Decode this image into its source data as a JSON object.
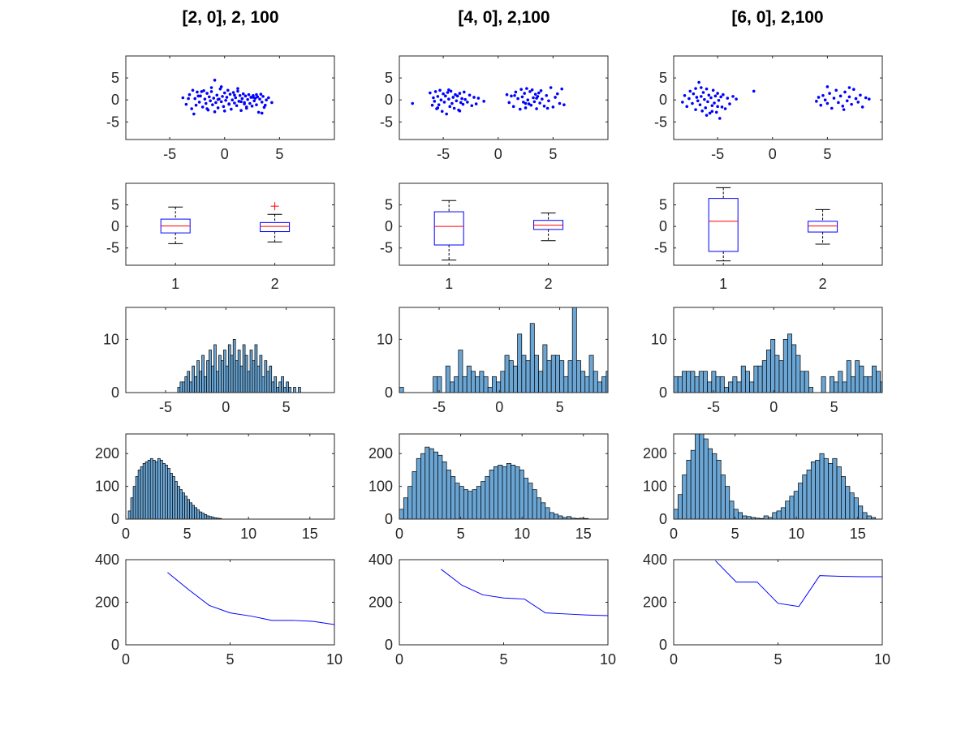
{
  "figure": {
    "titles": [
      "[2, 0], 2, 100",
      "[4, 0], 2,100",
      "[6, 0], 2,100"
    ]
  },
  "colors": {
    "points": "#0000ff",
    "box": "#0000ff",
    "median": "#ff0000",
    "whisker": "#000000",
    "outlier": "#ff0000",
    "hist_fill": "#6aa5d4",
    "hist_edge": "#000000",
    "line": "#0000ff",
    "axes": "#262626"
  },
  "chart_data": [
    {
      "type": "scatter",
      "column": 0,
      "xlim": [
        -9,
        10
      ],
      "ylim": [
        -9,
        10
      ],
      "xticks": [
        "-5",
        "0",
        "5"
      ],
      "yticks": [
        "-5",
        "0",
        "5"
      ],
      "x": [
        -3.8,
        -3.5,
        -3.2,
        -3.0,
        -2.9,
        -2.7,
        -2.6,
        -2.5,
        -2.3,
        -2.2,
        -2.0,
        -1.9,
        -1.8,
        -1.7,
        -1.6,
        -1.5,
        -1.4,
        -1.3,
        -1.2,
        -1.1,
        -1.0,
        -0.9,
        -0.8,
        -0.7,
        -0.6,
        -0.5,
        -0.4,
        -0.3,
        -0.2,
        -0.1,
        0.0,
        0.1,
        0.2,
        0.3,
        0.4,
        0.5,
        0.6,
        0.7,
        0.8,
        0.9,
        1.0,
        1.1,
        1.2,
        1.3,
        1.4,
        1.5,
        1.6,
        1.7,
        1.8,
        1.9,
        2.0,
        2.1,
        2.2,
        2.3,
        2.4,
        2.5,
        2.6,
        2.7,
        2.8,
        2.9,
        3.0,
        3.1,
        3.2,
        3.3,
        3.4,
        3.5,
        3.6,
        3.8,
        4.0,
        4.3,
        -2.8,
        -2.4,
        -1.6,
        -0.6,
        0.4,
        1.2,
        2.0,
        2.9,
        3.4,
        -3.3,
        -1.2,
        0.0,
        0.9,
        1.8,
        2.6,
        -0.9,
        -2.1,
        1.5,
        3.7,
        -0.3
      ],
      "y": [
        0.5,
        -1.0,
        1.2,
        -2.0,
        2.2,
        0.3,
        -1.2,
        1.8,
        -0.5,
        0.9,
        -1.6,
        2.1,
        0.2,
        -0.8,
        1.5,
        -2.3,
        0.7,
        -0.2,
        1.9,
        -1.1,
        0.4,
        4.5,
        -0.6,
        1.1,
        -1.8,
        0.2,
        2.5,
        -0.4,
        0.8,
        -1.5,
        1.6,
        -0.1,
        0.6,
        2.2,
        -0.9,
        1.3,
        -2.1,
        0.0,
        1.7,
        -0.7,
        0.5,
        -1.3,
        2.0,
        -0.3,
        1.0,
        -2.4,
        0.3,
        1.4,
        -0.6,
        0.9,
        -1.9,
        0.1,
        1.2,
        -0.8,
        0.6,
        -1.4,
        1.0,
        -0.2,
        0.4,
        -1.1,
        0.7,
        -2.8,
        0.2,
        1.3,
        -0.5,
        0.8,
        -1.7,
        0.0,
        0.5,
        -0.6,
        -3.2,
        0.9,
        -2.0,
        0.1,
        -1.0,
        2.6,
        -1.6,
        1.2,
        -3.0,
        0.3,
        2.8,
        -2.5,
        1.1,
        -0.9,
        0.6,
        -2.7,
        1.9,
        -0.4,
        -1.2,
        3.0
      ]
    },
    {
      "type": "scatter",
      "column": 1,
      "xlim": [
        -9,
        10
      ],
      "ylim": [
        -9,
        10
      ],
      "xticks": [
        "-5",
        "0",
        "5"
      ],
      "yticks": [
        "-5",
        "0",
        "5"
      ],
      "x": [
        -7.8,
        -6.2,
        -6.0,
        -5.9,
        -5.8,
        -5.7,
        -5.6,
        -5.5,
        -5.4,
        -5.3,
        -5.2,
        -5.1,
        -5.0,
        -4.9,
        -4.8,
        -4.7,
        -4.6,
        -4.5,
        -4.4,
        -4.3,
        -4.2,
        -4.1,
        -4.0,
        -3.9,
        -3.8,
        -3.7,
        -3.6,
        -3.5,
        -3.4,
        -3.3,
        -3.2,
        -3.1,
        -3.0,
        -2.8,
        -2.6,
        -2.4,
        -2.2,
        -2.0,
        -1.8,
        -1.3,
        0.8,
        1.0,
        1.2,
        1.4,
        1.6,
        1.8,
        2.0,
        2.1,
        2.2,
        2.3,
        2.4,
        2.5,
        2.6,
        2.7,
        2.8,
        2.9,
        3.0,
        3.1,
        3.2,
        3.3,
        3.4,
        3.5,
        3.6,
        3.7,
        3.8,
        3.9,
        4.0,
        4.2,
        4.4,
        4.6,
        4.8,
        5.0,
        5.2,
        5.4,
        5.6,
        5.8,
        6.0,
        -5.5,
        -4.5,
        -3.5,
        2.5,
        3.5,
        4.5,
        1.5
      ],
      "y": [
        -0.8,
        1.6,
        -1.2,
        0.5,
        -0.3,
        1.9,
        -2.0,
        0.8,
        -1.1,
        2.2,
        0.0,
        -2.6,
        1.4,
        -0.5,
        0.9,
        -3.2,
        1.7,
        0.2,
        -1.5,
        2.0,
        -0.8,
        0.6,
        -1.9,
        1.2,
        -0.2,
        0.9,
        -2.3,
        1.5,
        -0.6,
        0.3,
        -1.0,
        1.8,
        0.1,
        -0.5,
        1.1,
        -1.3,
        0.6,
        -0.9,
        0.4,
        -0.3,
        1.2,
        -0.6,
        0.9,
        -1.5,
        1.8,
        0.3,
        -2.1,
        2.4,
        0.7,
        -0.5,
        1.5,
        -1.8,
        2.6,
        0.0,
        -0.9,
        1.9,
        -1.2,
        2.3,
        0.5,
        -0.4,
        1.3,
        -2.0,
        0.8,
        1.6,
        -0.7,
        2.1,
        0.2,
        -1.4,
        1.0,
        -0.2,
        2.8,
        -1.6,
        0.6,
        1.4,
        -0.8,
        2.5,
        -1.1,
        -1.8,
        2.3,
        -2.5,
        -0.8,
        0.4,
        -1.9,
        1.0
      ]
    },
    {
      "type": "scatter",
      "column": 2,
      "xlim": [
        -9,
        10
      ],
      "ylim": [
        -9,
        10
      ],
      "xticks": [
        "-5",
        "0",
        "5"
      ],
      "yticks": [
        "-5",
        "0",
        "5"
      ],
      "x": [
        -8.2,
        -8.0,
        -7.8,
        -7.6,
        -7.5,
        -7.3,
        -7.2,
        -7.0,
        -6.9,
        -6.8,
        -6.7,
        -6.6,
        -6.5,
        -6.4,
        -6.3,
        -6.2,
        -6.1,
        -6.0,
        -5.9,
        -5.8,
        -5.7,
        -5.6,
        -5.5,
        -5.4,
        -5.3,
        -5.2,
        -5.1,
        -5.0,
        -4.9,
        -4.8,
        -4.7,
        -4.6,
        -4.5,
        -4.3,
        -4.1,
        -3.9,
        -3.6,
        -3.3,
        -1.7,
        4.0,
        4.2,
        4.4,
        4.6,
        4.8,
        5.0,
        5.2,
        5.4,
        5.6,
        5.8,
        6.0,
        6.2,
        6.4,
        6.6,
        6.8,
        7.0,
        7.2,
        7.4,
        7.6,
        7.8,
        8.0,
        8.2,
        8.5,
        8.8,
        5.0,
        6.5,
        7.0,
        -7.0,
        -6.0,
        -5.0,
        -6.5,
        -5.5
      ],
      "y": [
        -0.5,
        1.0,
        -1.5,
        0.3,
        2.0,
        -0.8,
        1.4,
        -2.2,
        0.6,
        -0.2,
        4.0,
        -1.1,
        0.8,
        -2.5,
        1.7,
        0.1,
        -1.8,
        2.5,
        -0.4,
        1.1,
        -3.0,
        0.5,
        -1.3,
        2.2,
        -0.7,
        0.9,
        -2.8,
        1.5,
        -0.1,
        -4.2,
        0.7,
        -1.6,
        1.2,
        -2.0,
        0.4,
        -0.9,
        0.8,
        0.2,
        2.0,
        -0.3,
        0.6,
        -1.2,
        1.0,
        0.0,
        -0.8,
        1.5,
        -1.9,
        0.4,
        2.2,
        -0.6,
        0.9,
        -1.4,
        1.8,
        -0.2,
        0.7,
        -1.0,
        2.4,
        0.3,
        -0.5,
        1.1,
        -1.6,
        0.5,
        0.2,
        3.0,
        -2.2,
        2.8,
        2.6,
        -3.5,
        -1.5,
        2.8,
        -2.6
      ]
    },
    {
      "type": "box",
      "column": 0,
      "categories": [
        "1",
        "2"
      ],
      "ylim": [
        -9,
        10
      ],
      "yticks": [
        "-5",
        "0",
        "5"
      ],
      "boxes": [
        {
          "whisker_low": -4.0,
          "q1": -1.5,
          "median": 0.1,
          "q3": 1.7,
          "whisker_high": 4.5,
          "outliers": []
        },
        {
          "whisker_low": -3.6,
          "q1": -1.2,
          "median": 0.0,
          "q3": 0.9,
          "whisker_high": 2.8,
          "outliers": [
            4.7
          ]
        }
      ]
    },
    {
      "type": "box",
      "column": 1,
      "categories": [
        "1",
        "2"
      ],
      "ylim": [
        -9,
        10
      ],
      "yticks": [
        "-5",
        "0",
        "5"
      ],
      "boxes": [
        {
          "whisker_low": -7.8,
          "q1": -4.3,
          "median": 0.0,
          "q3": 3.4,
          "whisker_high": 6.0,
          "outliers": []
        },
        {
          "whisker_low": -3.3,
          "q1": -0.7,
          "median": 0.3,
          "q3": 1.4,
          "whisker_high": 3.1,
          "outliers": []
        }
      ]
    },
    {
      "type": "box",
      "column": 2,
      "categories": [
        "1",
        "2"
      ],
      "ylim": [
        -9,
        10
      ],
      "yticks": [
        "-5",
        "0",
        "5"
      ],
      "boxes": [
        {
          "whisker_low": -8.0,
          "q1": -5.8,
          "median": 1.2,
          "q3": 6.5,
          "whisker_high": 9.0,
          "outliers": []
        },
        {
          "whisker_low": -4.1,
          "q1": -1.3,
          "median": 0.1,
          "q3": 1.2,
          "whisker_high": 3.9,
          "outliers": []
        }
      ]
    },
    {
      "type": "bar",
      "column": 0,
      "xlim": [
        -8.3,
        9.0
      ],
      "ylim": [
        0,
        16
      ],
      "xticks": [
        "-5",
        "0",
        "5"
      ],
      "yticks": [
        "0",
        "10"
      ],
      "bin_edges_start": -4.0,
      "bin_width": 0.2,
      "values": [
        1,
        2,
        2,
        3,
        4,
        2,
        5,
        3,
        6,
        4,
        7,
        3,
        6,
        8,
        5,
        9,
        4,
        7,
        6,
        8,
        5,
        9,
        7,
        10,
        6,
        8,
        5,
        9,
        7,
        4,
        8,
        6,
        9,
        5,
        7,
        3,
        6,
        4,
        5,
        2,
        3,
        1,
        2,
        3,
        1,
        2,
        1,
        0,
        1,
        0,
        1
      ]
    },
    {
      "type": "bar",
      "column": 1,
      "xlim": [
        -8.3,
        9.0
      ],
      "ylim": [
        0,
        16
      ],
      "xticks": [
        "-5",
        "0",
        "5"
      ],
      "yticks": [
        "0",
        "10"
      ],
      "bin_edges_start": -8.3,
      "bin_width": 0.35,
      "values": [
        1,
        0,
        0,
        0,
        0,
        0,
        0,
        0,
        3,
        3,
        0,
        5,
        2,
        3,
        8,
        3,
        5,
        4,
        3,
        4,
        3,
        1,
        3,
        2,
        4,
        7,
        6,
        5,
        11,
        7,
        6,
        13,
        7,
        4,
        9,
        6,
        7,
        7,
        6,
        3,
        6,
        16,
        6,
        4,
        3,
        7,
        4,
        2,
        3,
        4,
        3,
        4,
        3,
        1
      ]
    },
    {
      "type": "bar",
      "column": 2,
      "xlim": [
        -8.3,
        9.0
      ],
      "ylim": [
        0,
        16
      ],
      "xticks": [
        "-5",
        "0",
        "5"
      ],
      "yticks": [
        "0",
        "10"
      ],
      "bin_edges_start": -8.3,
      "bin_width": 0.35,
      "values": [
        3,
        3,
        4,
        4,
        4,
        3,
        4,
        4,
        2,
        4,
        3,
        3,
        1,
        2,
        3,
        2,
        5,
        4,
        2,
        5,
        5,
        6,
        8,
        10,
        7,
        6,
        10,
        11,
        9,
        7,
        4,
        4,
        1,
        0,
        0,
        3,
        0,
        3,
        2,
        4,
        2,
        6,
        3,
        6,
        5,
        3,
        3,
        5,
        4,
        2,
        1,
        1,
        1,
        1
      ]
    },
    {
      "type": "bar",
      "column": 0,
      "xlim": [
        0,
        17
      ],
      "ylim": [
        0,
        260
      ],
      "xticks": [
        "0",
        "5",
        "10",
        "15"
      ],
      "yticks": [
        "0",
        "100",
        "200"
      ],
      "bin_edges_start": 0.2,
      "bin_width": 0.2,
      "values": [
        25,
        65,
        100,
        130,
        150,
        160,
        170,
        175,
        180,
        185,
        180,
        175,
        185,
        180,
        170,
        165,
        155,
        140,
        130,
        115,
        100,
        90,
        80,
        70,
        60,
        50,
        42,
        35,
        28,
        22,
        18,
        14,
        10,
        8,
        6,
        4,
        3,
        2
      ]
    },
    {
      "type": "bar",
      "column": 1,
      "xlim": [
        0,
        17
      ],
      "ylim": [
        0,
        260
      ],
      "xticks": [
        "0",
        "5",
        "10",
        "15"
      ],
      "yticks": [
        "0",
        "100",
        "200"
      ],
      "bin_edges_start": 0.0,
      "bin_width": 0.35,
      "values": [
        30,
        65,
        100,
        145,
        185,
        200,
        220,
        215,
        205,
        195,
        175,
        150,
        130,
        110,
        100,
        90,
        85,
        90,
        100,
        115,
        130,
        150,
        160,
        165,
        160,
        170,
        165,
        160,
        150,
        125,
        110,
        90,
        65,
        50,
        35,
        20,
        15,
        10,
        5,
        8,
        3,
        2,
        3,
        2
      ]
    },
    {
      "type": "bar",
      "column": 2,
      "xlim": [
        0,
        17
      ],
      "ylim": [
        0,
        260
      ],
      "xticks": [
        "0",
        "5",
        "10",
        "15"
      ],
      "yticks": [
        "0",
        "100",
        "200"
      ],
      "bin_edges_start": 0.0,
      "bin_width": 0.35,
      "values": [
        30,
        75,
        135,
        180,
        210,
        270,
        260,
        245,
        215,
        200,
        180,
        135,
        100,
        55,
        30,
        20,
        10,
        8,
        5,
        3,
        2,
        10,
        5,
        20,
        25,
        35,
        55,
        70,
        85,
        110,
        135,
        150,
        175,
        180,
        200,
        185,
        170,
        185,
        160,
        130,
        100,
        80,
        65,
        40,
        20,
        10,
        5
      ]
    },
    {
      "type": "line",
      "column": 0,
      "xlim": [
        0,
        10
      ],
      "ylim": [
        0,
        400
      ],
      "xticks": [
        "0",
        "5",
        "10"
      ],
      "yticks": [
        "0",
        "200",
        "400"
      ],
      "x": [
        2,
        3,
        4,
        5,
        6,
        7,
        8,
        9,
        10
      ],
      "y": [
        340,
        260,
        185,
        150,
        135,
        115,
        115,
        110,
        95
      ]
    },
    {
      "type": "line",
      "column": 1,
      "xlim": [
        0,
        10
      ],
      "ylim": [
        0,
        400
      ],
      "xticks": [
        "0",
        "5",
        "10"
      ],
      "yticks": [
        "0",
        "200",
        "400"
      ],
      "x": [
        2,
        3,
        4,
        5,
        6,
        7,
        8,
        9,
        10
      ],
      "y": [
        355,
        280,
        235,
        220,
        215,
        150,
        145,
        140,
        137
      ]
    },
    {
      "type": "line",
      "column": 2,
      "xlim": [
        0,
        10
      ],
      "ylim": [
        0,
        400
      ],
      "xticks": [
        "0",
        "5",
        "10"
      ],
      "yticks": [
        "0",
        "200",
        "400"
      ],
      "x": [
        2,
        3,
        4,
        5,
        6,
        7,
        8,
        9,
        10
      ],
      "y": [
        395,
        295,
        295,
        195,
        180,
        325,
        322,
        320,
        320
      ]
    }
  ]
}
